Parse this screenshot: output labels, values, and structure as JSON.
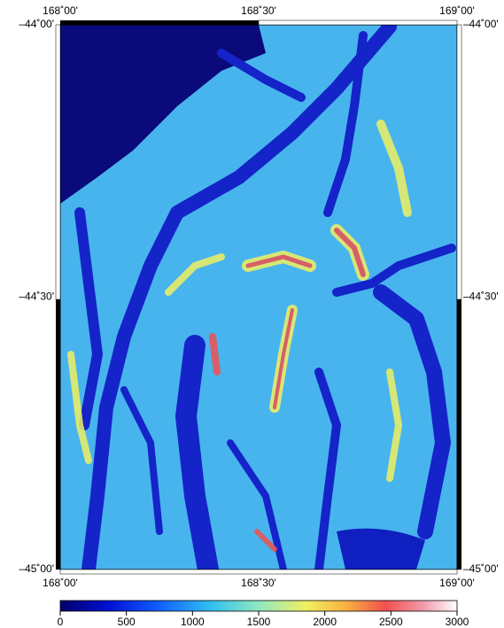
{
  "map": {
    "lon_labels": [
      "168˚00'",
      "168˚30'",
      "169˚00'"
    ],
    "lat_labels": [
      "–44˚00'",
      "–44˚30'",
      "–45˚00'"
    ],
    "colorbar": {
      "range": [
        0,
        3000
      ],
      "ticks": [
        0,
        500,
        1000,
        1500,
        2000,
        2500,
        3000
      ]
    }
  }
}
